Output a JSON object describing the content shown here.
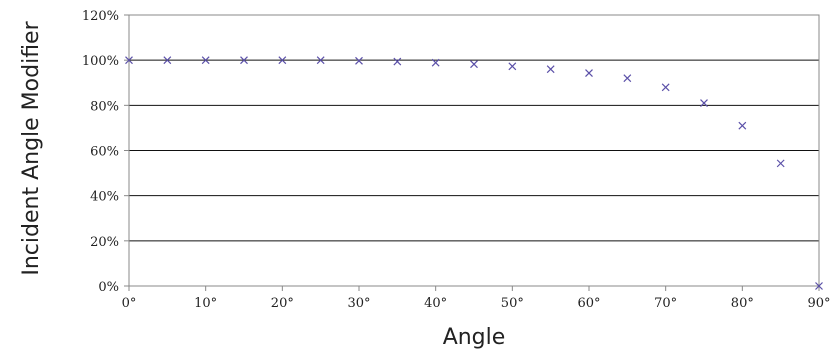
{
  "chart_data": {
    "type": "scatter",
    "title": "",
    "xlabel": "Angle",
    "ylabel": "Incident Angle Modifier",
    "x_ticks": [
      "0°",
      "10°",
      "20°",
      "30°",
      "40°",
      "50°",
      "60°",
      "70°",
      "80°",
      "90°"
    ],
    "x_tick_values": [
      0,
      10,
      20,
      30,
      40,
      50,
      60,
      70,
      80,
      90
    ],
    "y_ticks": [
      "0%",
      "20%",
      "40%",
      "60%",
      "80%",
      "100%",
      "120%"
    ],
    "y_tick_values": [
      0,
      20,
      40,
      60,
      80,
      100,
      120
    ],
    "xlim": [
      0,
      90
    ],
    "ylim": [
      0,
      120
    ],
    "grid": "horizontal",
    "legend": "none",
    "marker": "x",
    "marker_color": "#5b50a8",
    "series": [
      {
        "x": [
          0,
          5,
          10,
          15,
          20,
          25,
          30,
          35,
          40,
          45,
          50,
          55,
          60,
          65,
          70,
          75,
          80,
          85,
          90
        ],
        "y": [
          100,
          100,
          100,
          100,
          100,
          100,
          99.7,
          99.4,
          98.9,
          98.2,
          97.3,
          96,
          94.3,
          92,
          88,
          81,
          71,
          54.3,
          0
        ]
      }
    ]
  }
}
